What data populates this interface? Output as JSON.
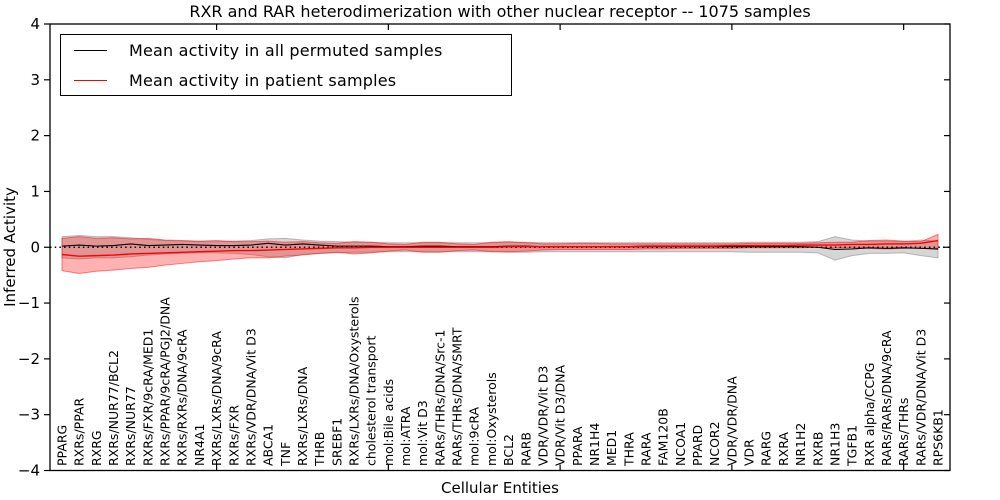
{
  "figure": {
    "title": "RXR and RAR heterodimerization with other nuclear receptor -- 1075 samples",
    "xlabel": "Cellular Entities",
    "ylabel": "Inferred Activity"
  },
  "legend": {
    "position": "upper left",
    "entries": [
      {
        "label": "Mean activity in all permuted samples",
        "color": "#000000"
      },
      {
        "label": "Mean activity in patient samples",
        "color": "#ff0000"
      }
    ]
  },
  "chart_data": {
    "type": "line",
    "title": "RXR and RAR heterodimerization with other nuclear receptor -- 1075 samples",
    "xlabel": "Cellular Entities",
    "ylabel": "Inferred Activity",
    "ylim": [
      -4,
      4
    ],
    "yticks": [
      4,
      3,
      2,
      1,
      0,
      -1,
      -2,
      -3,
      -4
    ],
    "x_major_tick_indices": [
      9,
      19,
      29,
      39,
      49
    ],
    "grid": false,
    "legend_position": "upper left",
    "colors": {
      "permuted": "#000000",
      "patient": "#ff0000",
      "permuted_band": "#808080",
      "patient_band": "#ff0000"
    },
    "categories": [
      "PPARG",
      "RXRs/PPAR",
      "RXRG",
      "RXRs/NUR77/BCL2",
      "RXRs/NUR77",
      "RXRs/FXR/9cRA/MED1",
      "RXRs/PPAR/9cRA/PGJ2/DNA",
      "RXRs/RXRs/DNA/9cRA",
      "NR4A1",
      "RXRs/LXRs/DNA/9cRA",
      "RXRs/FXR",
      "RXRs/VDR/DNA/Vit D3",
      "ABCA1",
      "TNF",
      "RXRs/LXRs/DNA",
      "THRB",
      "SREBF1",
      "RXRs/LXRs/DNA/Oxysterols",
      "cholesterol transport",
      "mol:Bile acids",
      "mol:ATRA",
      "mol:Vit D3",
      "RARs/THRs/DNA/Src-1",
      "RARs/THRs/DNA/SMRT",
      "mol:9cRA",
      "mol:Oxysterols",
      "BCL2",
      "RARB",
      "VDR/VDR/Vit D3",
      "VDR/Vit D3/DNA",
      "PPARA",
      "NR1H4",
      "MED1",
      "THRA",
      "RARA",
      "FAM120B",
      "NCOA1",
      "PPARD",
      "NCOR2",
      "VDR/VDR/DNA",
      "VDR",
      "RARG",
      "RXRA",
      "NR1H2",
      "RXRB",
      "NR1H3",
      "TGFB1",
      "RXR alpha/CCPG",
      "RARs/RARs/DNA/9cRA",
      "RARs/THRs",
      "RARs/VDR/DNA/Vit D3",
      "RPS6KB1"
    ],
    "series": [
      {
        "name": "Mean activity in all permuted samples",
        "color": "#000000",
        "width": 1.1,
        "values": [
          0.02,
          0.04,
          0.02,
          0.03,
          0.06,
          0.03,
          0.04,
          0.05,
          0.04,
          0.03,
          0.03,
          0.04,
          0.07,
          0.04,
          0.06,
          0.04,
          0.02,
          0.02,
          0.02,
          0.01,
          0.01,
          0.02,
          0.02,
          0.01,
          0.01,
          0.01,
          0.02,
          0.02,
          0.01,
          0.01,
          0.01,
          0.01,
          0.01,
          0.01,
          0.01,
          0.01,
          0.01,
          0.01,
          0.01,
          0.01,
          0.01,
          0.01,
          0.01,
          0.01,
          0.0,
          -0.04,
          -0.03,
          -0.01,
          -0.02,
          -0.01,
          -0.02,
          -0.03
        ]
      },
      {
        "name": "Mean activity in patient samples",
        "color": "#ff0000",
        "width": 1.4,
        "values": [
          -0.13,
          -0.16,
          -0.15,
          -0.14,
          -0.12,
          -0.11,
          -0.1,
          -0.09,
          -0.08,
          -0.07,
          -0.06,
          -0.06,
          -0.05,
          -0.04,
          -0.03,
          -0.02,
          -0.01,
          -0.01,
          0.0,
          0.0,
          0.0,
          0.0,
          0.0,
          0.0,
          0.0,
          0.0,
          0.01,
          0.01,
          0.01,
          0.01,
          0.01,
          0.01,
          0.01,
          0.01,
          0.02,
          0.02,
          0.02,
          0.02,
          0.02,
          0.03,
          0.03,
          0.03,
          0.03,
          0.04,
          0.04,
          0.04,
          0.05,
          0.05,
          0.06,
          0.06,
          0.07,
          0.12
        ]
      }
    ],
    "bands": [
      {
        "name": "permuted-samples-std-band",
        "color": "#808080",
        "opacity": 0.32,
        "upper": [
          0.19,
          0.21,
          0.19,
          0.19,
          0.17,
          0.14,
          0.12,
          0.11,
          0.1,
          0.1,
          0.11,
          0.12,
          0.15,
          0.16,
          0.13,
          0.11,
          0.1,
          0.09,
          0.09,
          0.08,
          0.08,
          0.08,
          0.08,
          0.08,
          0.08,
          0.08,
          0.09,
          0.09,
          0.08,
          0.08,
          0.08,
          0.08,
          0.08,
          0.08,
          0.08,
          0.08,
          0.08,
          0.08,
          0.08,
          0.08,
          0.09,
          0.09,
          0.09,
          0.09,
          0.1,
          0.19,
          0.13,
          0.11,
          0.11,
          0.1,
          0.13,
          0.11
        ],
        "lower": [
          -0.19,
          -0.21,
          -0.19,
          -0.19,
          -0.17,
          -0.14,
          -0.12,
          -0.11,
          -0.1,
          -0.1,
          -0.11,
          -0.13,
          -0.17,
          -0.19,
          -0.13,
          -0.11,
          -0.1,
          -0.09,
          -0.09,
          -0.08,
          -0.08,
          -0.08,
          -0.08,
          -0.08,
          -0.08,
          -0.08,
          -0.09,
          -0.09,
          -0.08,
          -0.08,
          -0.08,
          -0.08,
          -0.08,
          -0.08,
          -0.08,
          -0.08,
          -0.08,
          -0.08,
          -0.08,
          -0.08,
          -0.09,
          -0.09,
          -0.09,
          -0.09,
          -0.1,
          -0.23,
          -0.15,
          -0.11,
          -0.11,
          -0.1,
          -0.15,
          -0.19
        ]
      },
      {
        "name": "patient-samples-std-band",
        "color": "#ff0000",
        "opacity": 0.3,
        "upper": [
          0.16,
          0.19,
          0.16,
          0.17,
          0.15,
          0.16,
          0.13,
          0.12,
          0.11,
          0.12,
          0.1,
          0.1,
          0.11,
          0.09,
          0.1,
          0.08,
          0.07,
          0.1,
          0.09,
          0.06,
          0.05,
          0.09,
          0.09,
          0.06,
          0.05,
          0.09,
          0.1,
          0.08,
          0.06,
          0.06,
          0.07,
          0.07,
          0.06,
          0.06,
          0.06,
          0.06,
          0.06,
          0.06,
          0.06,
          0.06,
          0.07,
          0.07,
          0.07,
          0.07,
          0.08,
          0.09,
          0.09,
          0.12,
          0.13,
          0.11,
          0.1,
          0.23
        ],
        "lower": [
          -0.42,
          -0.47,
          -0.43,
          -0.41,
          -0.38,
          -0.36,
          -0.32,
          -0.29,
          -0.26,
          -0.24,
          -0.21,
          -0.19,
          -0.19,
          -0.16,
          -0.14,
          -0.11,
          -0.09,
          -0.12,
          -0.1,
          -0.07,
          -0.05,
          -0.09,
          -0.09,
          -0.06,
          -0.05,
          -0.08,
          -0.08,
          -0.07,
          -0.05,
          -0.04,
          -0.04,
          -0.04,
          -0.04,
          -0.04,
          -0.03,
          -0.03,
          -0.02,
          -0.02,
          -0.02,
          -0.02,
          -0.01,
          -0.01,
          -0.01,
          -0.01,
          0.0,
          -0.01,
          0.0,
          -0.02,
          -0.03,
          -0.02,
          -0.01,
          -0.04
        ]
      }
    ],
    "zero_line": {
      "y": 0,
      "style": "dotted",
      "color": "#000000"
    }
  }
}
